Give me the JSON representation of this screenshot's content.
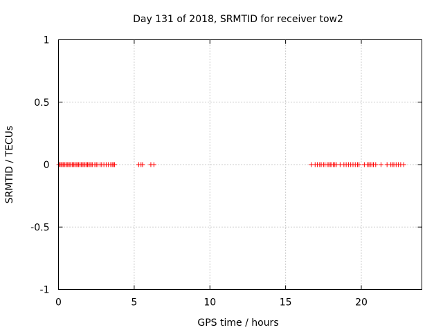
{
  "chart_data": {
    "type": "scatter",
    "title": "Day 131 of 2018, SRMTID for receiver tow2",
    "xlabel": "GPS time / hours",
    "ylabel": "SRMTID / TECUs",
    "xlim": [
      0,
      24
    ],
    "ylim": [
      -1,
      1
    ],
    "xticks": [
      0,
      5,
      10,
      15,
      20
    ],
    "xtick_labels": [
      "0",
      "5",
      "10",
      "15",
      "20"
    ],
    "yticks": [
      -1,
      -0.5,
      0,
      0.5,
      1
    ],
    "ytick_labels": [
      "-1",
      "-0.5",
      "0",
      "0.5",
      "1"
    ],
    "grid": true,
    "marker": "+",
    "color": "#ff0000",
    "series": [
      {
        "name": "SRMTID",
        "x": [
          0.03,
          0.1,
          0.17,
          0.25,
          0.33,
          0.42,
          0.5,
          0.58,
          0.67,
          0.75,
          0.83,
          0.92,
          1.0,
          1.08,
          1.17,
          1.25,
          1.33,
          1.42,
          1.5,
          1.58,
          1.67,
          1.75,
          1.83,
          1.92,
          2.0,
          2.08,
          2.17,
          2.25,
          2.4,
          2.5,
          2.6,
          2.75,
          2.85,
          3.0,
          3.15,
          3.3,
          3.45,
          3.55,
          3.62,
          3.7,
          5.3,
          5.45,
          5.55,
          6.1,
          6.3,
          16.7,
          16.95,
          17.1,
          17.25,
          17.35,
          17.5,
          17.6,
          17.75,
          17.85,
          17.95,
          18.05,
          18.15,
          18.25,
          18.35,
          18.6,
          18.85,
          19.0,
          19.15,
          19.3,
          19.45,
          19.6,
          19.75,
          19.85,
          20.2,
          20.4,
          20.5,
          20.6,
          20.7,
          20.8,
          20.95,
          21.3,
          21.7,
          21.95,
          22.05,
          22.15,
          22.3,
          22.45,
          22.6,
          22.8
        ],
        "y": [
          0,
          0,
          0,
          0,
          0,
          0,
          0,
          0,
          0,
          0,
          0,
          0,
          0,
          0,
          0,
          0,
          0,
          0,
          0,
          0,
          0,
          0,
          0,
          0,
          0,
          0,
          0,
          0,
          0,
          0,
          0,
          0,
          0,
          0,
          0,
          0,
          0,
          0,
          0,
          0,
          0,
          0,
          0,
          0,
          0,
          0,
          0,
          0,
          0,
          0,
          0,
          0,
          0,
          0,
          0,
          0,
          0,
          0,
          0,
          0,
          0,
          0,
          0,
          0,
          0,
          0,
          0,
          0,
          0,
          0,
          0,
          0,
          0,
          0,
          0,
          0,
          0,
          0,
          0,
          0,
          0,
          0,
          0,
          0
        ]
      }
    ]
  }
}
